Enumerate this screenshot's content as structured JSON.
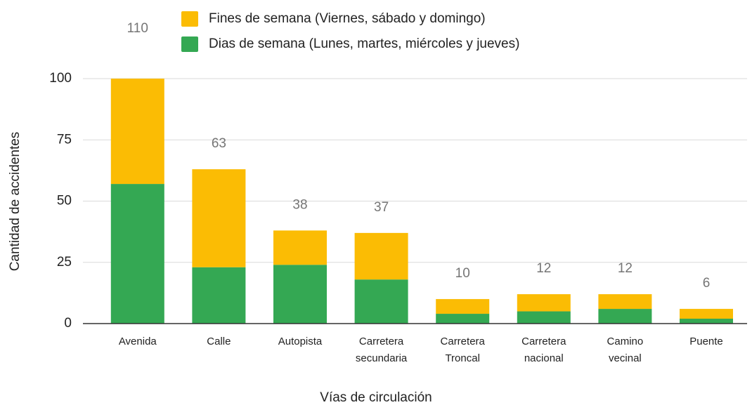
{
  "chart_data": {
    "type": "stacked_bar",
    "xlabel": "Vías de circulación",
    "ylabel": "Cantidad de accidentes",
    "categories": [
      "Avenida",
      "Calle",
      "Autopista",
      "Carretera secundaria",
      "Carretera Troncal",
      "Carretera nacional",
      "Camino vecinal",
      "Puente"
    ],
    "series": [
      {
        "name": "Dias de semana (Lunes, martes, miércoles y jueves)",
        "color": "#34a853",
        "values": [
          57,
          23,
          24,
          18,
          4,
          5,
          6,
          2
        ]
      },
      {
        "name": "Fines de semana (Viernes, sábado y domingo)",
        "color": "#fbbc04",
        "values": [
          53,
          40,
          14,
          19,
          6,
          7,
          6,
          4
        ]
      }
    ],
    "totals": [
      110,
      63,
      38,
      37,
      10,
      12,
      12,
      6
    ],
    "ylim": [
      0,
      100
    ],
    "yticks": [
      0,
      25,
      50,
      75,
      100
    ],
    "grid": true
  }
}
